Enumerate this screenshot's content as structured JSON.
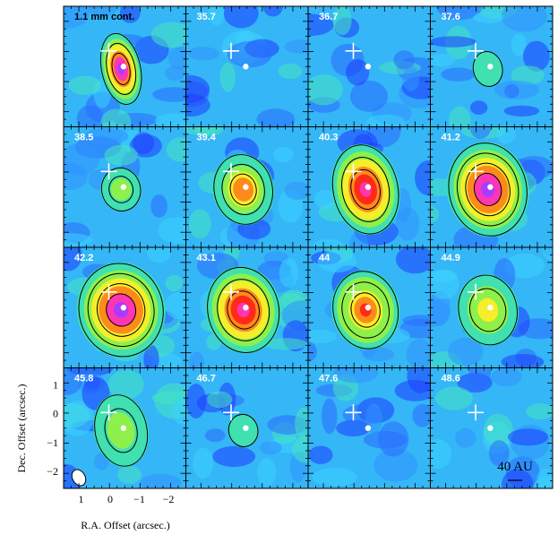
{
  "chart_data": {
    "type": "heatmap",
    "layout": "4x4 channel-map grid",
    "panels": [
      {
        "label": "1.1 mm cont.",
        "peak": 1.0,
        "extent": 0.6,
        "contours": 3,
        "elongation": 2.0
      },
      {
        "label": "35.7",
        "peak": 0.0,
        "extent": 0.0,
        "contours": 0,
        "elongation": 1.0
      },
      {
        "label": "36.7",
        "peak": 0.0,
        "extent": 0.0,
        "contours": 0,
        "elongation": 1.0
      },
      {
        "label": "37.6",
        "peak": 0.35,
        "extent": 0.45,
        "contours": 1,
        "elongation": 1.3
      },
      {
        "label": "38.5",
        "peak": 0.45,
        "extent": 0.6,
        "contours": 2,
        "elongation": 1.2
      },
      {
        "label": "39.4",
        "peak": 0.7,
        "extent": 0.9,
        "contours": 3,
        "elongation": 1.3
      },
      {
        "label": "40.3",
        "peak": 0.85,
        "extent": 1.0,
        "contours": 3,
        "elongation": 1.5
      },
      {
        "label": "41.2",
        "peak": 1.0,
        "extent": 1.2,
        "contours": 4,
        "elongation": 1.3
      },
      {
        "label": "42.2",
        "peak": 1.0,
        "extent": 1.3,
        "contours": 4,
        "elongation": 1.2
      },
      {
        "label": "43.1",
        "peak": 0.9,
        "extent": 1.1,
        "contours": 3,
        "elongation": 1.3
      },
      {
        "label": "44",
        "peak": 0.75,
        "extent": 1.0,
        "contours": 3,
        "elongation": 1.3
      },
      {
        "label": "44.9",
        "peak": 0.55,
        "extent": 0.9,
        "contours": 2,
        "elongation": 1.3
      },
      {
        "label": "45.8",
        "peak": 0.45,
        "extent": 0.8,
        "contours": 2,
        "elongation": 1.5
      },
      {
        "label": "46.7",
        "peak": 0.3,
        "extent": 0.45,
        "contours": 1,
        "elongation": 1.2
      },
      {
        "label": "47.6",
        "peak": 0.0,
        "extent": 0.0,
        "contours": 0,
        "elongation": 1.0
      },
      {
        "label": "48.6",
        "peak": 0.0,
        "extent": 0.0,
        "contours": 0,
        "elongation": 1.0
      }
    ],
    "x_axis": {
      "label": "R.A. Offset (arcsec.)",
      "ticks": [
        "1",
        "0",
        "−1",
        "−2"
      ],
      "range": [
        1.6,
        -2.6
      ]
    },
    "y_axis": {
      "label": "Dec. Offset (arcsec.)",
      "ticks": [
        "1",
        "0",
        "−1",
        "−2"
      ],
      "range": [
        -2.6,
        1.6
      ]
    },
    "scale_bar": "40 AU",
    "markers": [
      "white cross",
      "white dot"
    ],
    "colormap": [
      "#1a2cff",
      "#2f7cff",
      "#3cc4ff",
      "#40e0b0",
      "#8ef04a",
      "#f4ef2a",
      "#ff8a1c",
      "#ff2a1a",
      "#ff35b4",
      "#a93cff"
    ]
  }
}
